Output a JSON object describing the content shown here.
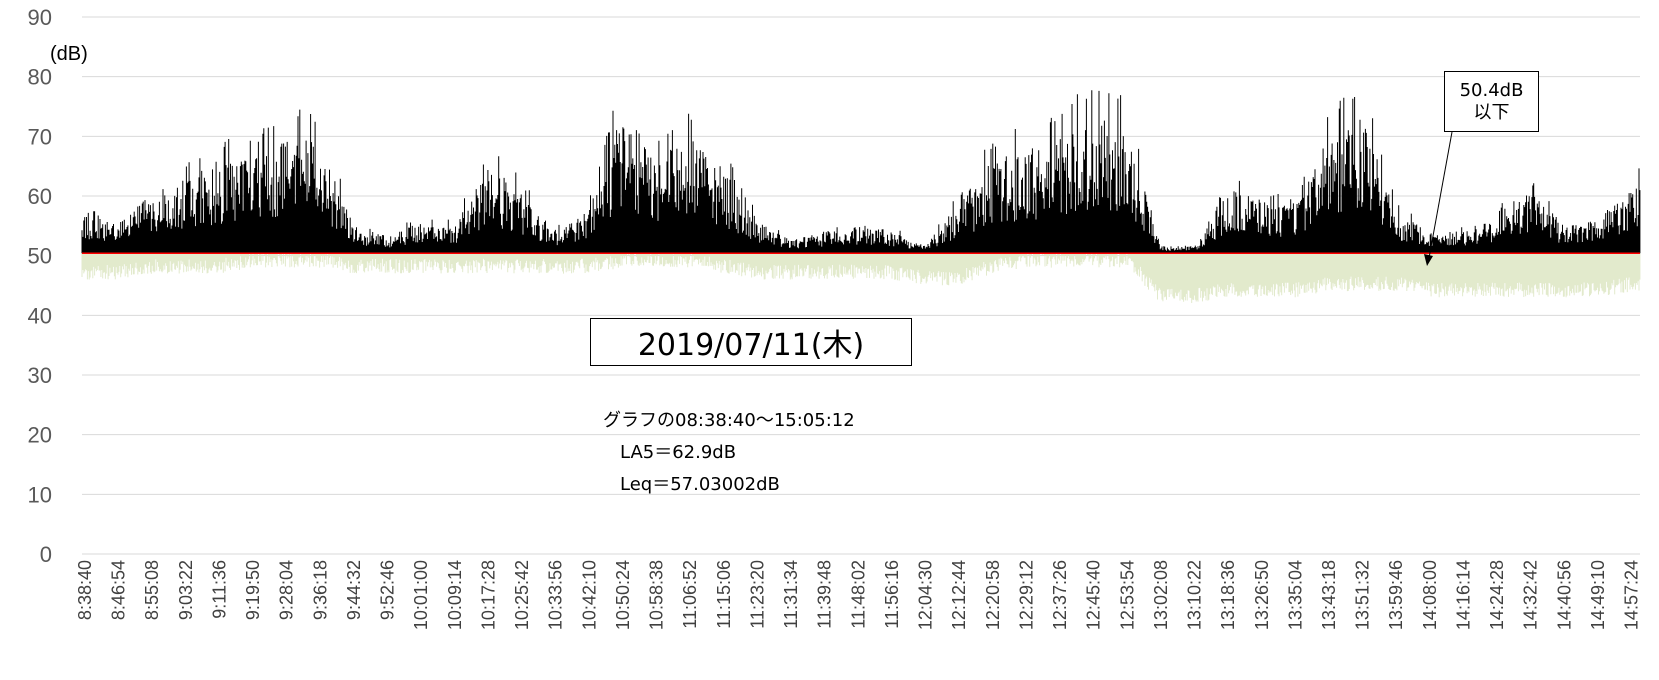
{
  "chart_data": {
    "type": "area",
    "y_unit": "(dB)",
    "ylim": [
      0,
      90
    ],
    "yticks": [
      0,
      10,
      20,
      30,
      40,
      50,
      60,
      70,
      80,
      90
    ],
    "grid": "horizontal",
    "x_tick_labels": [
      "8:38:40",
      "8:46:54",
      "8:55:08",
      "9:03:22",
      "9:11:36",
      "9:19:50",
      "9:28:04",
      "9:36:18",
      "9:44:32",
      "9:52:46",
      "10:01:00",
      "10:09:14",
      "10:17:28",
      "10:25:42",
      "10:33:56",
      "10:42:10",
      "10:50:24",
      "10:58:38",
      "11:06:52",
      "11:15:06",
      "11:23:20",
      "11:31:34",
      "11:39:48",
      "11:48:02",
      "11:56:16",
      "12:04:30",
      "12:12:44",
      "12:20:58",
      "12:29:12",
      "12:37:26",
      "12:45:40",
      "12:53:54",
      "13:02:08",
      "13:10:22",
      "13:18:36",
      "13:26:50",
      "13:35:04",
      "13:43:18",
      "13:51:32",
      "13:59:46",
      "14:08:00",
      "14:16:14",
      "14:24:28",
      "14:32:42",
      "14:40:56",
      "14:49:10",
      "14:57:24"
    ],
    "threshold": 50.4,
    "colors": {
      "above": "#000000",
      "below": "#e2eacc",
      "threshold_line": "#ff0000",
      "grid": "#d9d9d9"
    },
    "envelope": {
      "x_time": [
        "8:38:40",
        "8:46:54",
        "8:55:08",
        "9:03:22",
        "9:11:36",
        "9:19:50",
        "9:28:04",
        "9:36:18",
        "9:44:32",
        "9:52:46",
        "10:01:00",
        "10:09:14",
        "10:17:28",
        "10:25:42",
        "10:33:56",
        "10:42:10",
        "10:50:24",
        "10:58:38",
        "11:06:52",
        "11:15:06",
        "11:23:20",
        "11:31:34",
        "11:39:48",
        "11:48:02",
        "11:56:16",
        "12:04:30",
        "12:12:44",
        "12:20:58",
        "12:29:12",
        "12:37:26",
        "12:45:40",
        "12:53:54",
        "13:02:08",
        "13:10:22",
        "13:18:36",
        "13:26:50",
        "13:35:04",
        "13:43:18",
        "13:51:32",
        "13:59:46",
        "14:08:00",
        "14:16:14",
        "14:24:28",
        "14:32:42",
        "14:40:56",
        "14:49:10",
        "14:57:24"
      ],
      "max_db": [
        60,
        57,
        63,
        66,
        70,
        70,
        75,
        74,
        56,
        54,
        57,
        56,
        69,
        63,
        55,
        60,
        81,
        70,
        75,
        68,
        57,
        53,
        55,
        56,
        55,
        52,
        61,
        70,
        72,
        75,
        79,
        77,
        52,
        52,
        64,
        62,
        60,
        75,
        79,
        59,
        55,
        55,
        58,
        64,
        56,
        58,
        66
      ],
      "min_db": [
        46,
        46,
        47,
        47,
        47,
        48,
        48,
        48,
        47,
        47,
        47,
        47,
        47,
        47,
        47,
        47,
        48,
        48,
        48,
        47,
        46,
        46,
        46,
        46,
        46,
        45,
        45,
        47,
        48,
        48,
        48,
        48,
        42,
        42,
        43,
        43,
        43,
        44,
        44,
        44,
        43,
        43,
        43,
        43,
        43,
        43,
        44
      ]
    },
    "annotations": {
      "date": "2019/07/11(木)",
      "threshold_label": [
        "50.4dB",
        "以下"
      ],
      "stats": [
        "グラフの08:38:40～15:05:12",
        "LA5＝62.9dB",
        "Leq＝57.03002dB"
      ]
    }
  }
}
